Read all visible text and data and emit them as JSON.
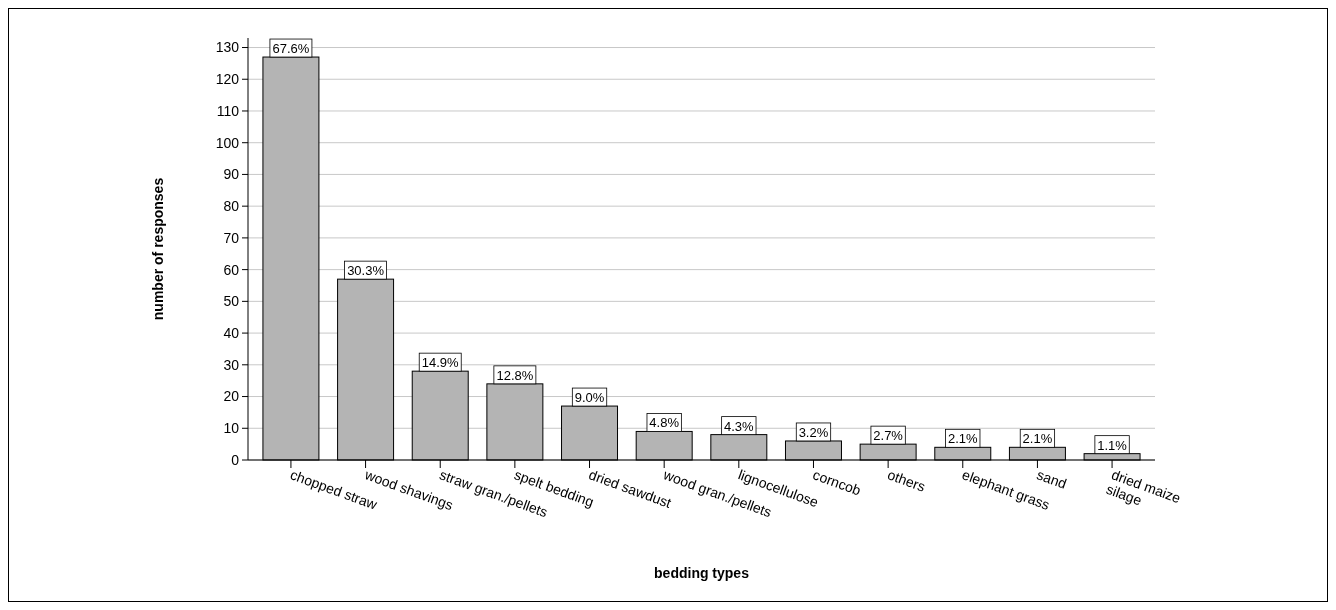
{
  "chart_data": {
    "type": "bar",
    "xlabel": "bedding types",
    "ylabel": "number of responses",
    "categories": [
      "chopped straw",
      "wood shavings",
      "straw gran./pellets",
      "spelt bedding",
      "dried sawdust",
      "wood gran./pellets",
      "lignocellulose",
      "corncob",
      "others",
      "elephant grass",
      "sand",
      "dried maize\nsilage"
    ],
    "values": [
      127,
      57,
      28,
      24,
      17,
      9,
      8,
      6,
      5,
      4,
      4,
      2
    ],
    "annotations": [
      {
        "text": "67.6%",
        "x": "chopped straw",
        "y": 127
      },
      {
        "text": "30.3%",
        "x": "wood shavings",
        "y": 57
      },
      {
        "text": "14.9%",
        "x": "straw gran./pellets",
        "y": 28
      },
      {
        "text": "12.8%",
        "x": "spelt bedding",
        "y": 24
      },
      {
        "text": "9.0%",
        "x": "dried sawdust",
        "y": 17
      },
      {
        "text": "4.8%",
        "x": "wood gran./pellets",
        "y": 9
      },
      {
        "text": "4.3%",
        "x": "lignocellulose",
        "y": 8
      },
      {
        "text": "3.2%",
        "x": "corncob",
        "y": 6
      },
      {
        "text": "2.7%",
        "x": "others",
        "y": 5
      },
      {
        "text": "2.1%",
        "x": "elephant grass",
        "y": 4
      },
      {
        "text": "2.1%",
        "x": "sand",
        "y": 4
      },
      {
        "text": "1.1%",
        "x": "dried maize\nsilage",
        "y": 2
      }
    ],
    "color": "#b4b4b4",
    "ylim": [
      0,
      133
    ],
    "yticks": [
      0,
      10,
      20,
      30,
      40,
      50,
      60,
      70,
      80,
      90,
      100,
      110,
      120,
      130
    ],
    "grid": "y"
  }
}
